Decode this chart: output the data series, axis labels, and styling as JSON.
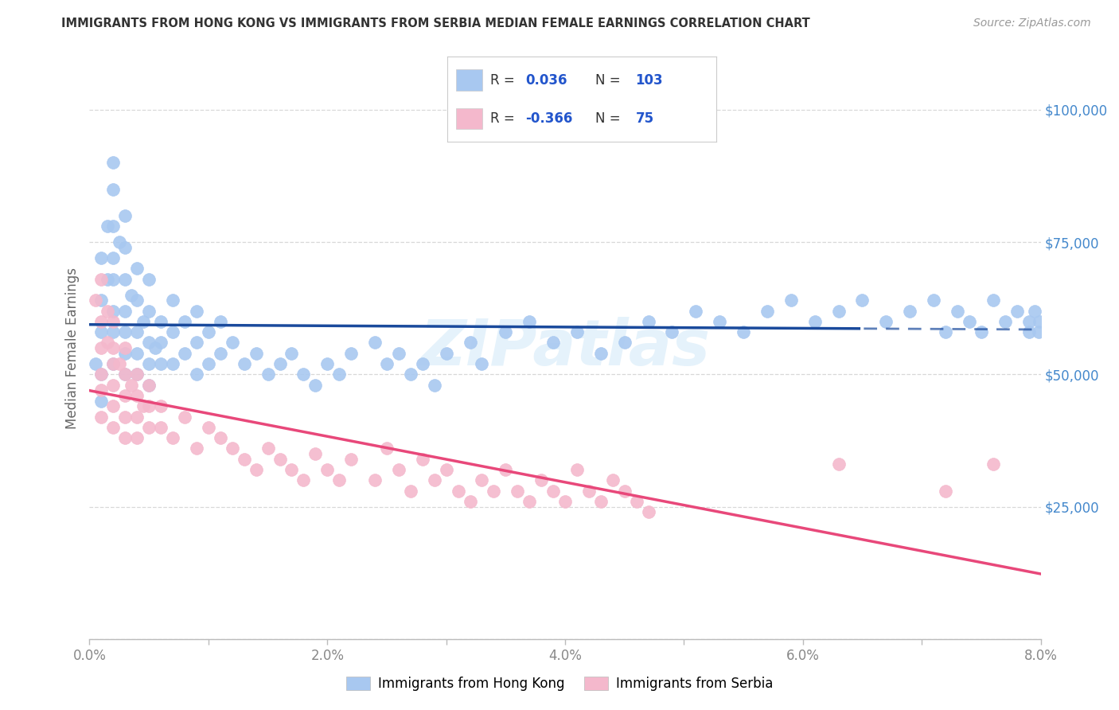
{
  "title": "IMMIGRANTS FROM HONG KONG VS IMMIGRANTS FROM SERBIA MEDIAN FEMALE EARNINGS CORRELATION CHART",
  "source": "Source: ZipAtlas.com",
  "ylabel": "Median Female Earnings",
  "xlim": [
    0.0,
    0.08
  ],
  "ylim": [
    0,
    110000
  ],
  "yticks": [
    0,
    25000,
    50000,
    75000,
    100000
  ],
  "xticks": [
    0.0,
    0.01,
    0.02,
    0.03,
    0.04,
    0.05,
    0.06,
    0.07,
    0.08
  ],
  "xtick_labels": [
    "0.0%",
    "",
    "2.0%",
    "",
    "4.0%",
    "",
    "6.0%",
    "",
    "8.0%"
  ],
  "hk_R": 0.036,
  "hk_N": 103,
  "serbia_R": -0.366,
  "serbia_N": 75,
  "hk_color": "#a8c8f0",
  "serbia_color": "#f4b8cc",
  "hk_line_color": "#1a4a9c",
  "serbia_line_color": "#e8487a",
  "legend_text_color": "#2255cc",
  "title_color": "#333333",
  "watermark": "ZIPatlas",
  "bg_color": "#ffffff",
  "grid_color": "#d8d8d8",
  "right_label_color": "#4488cc",
  "hk_x": [
    0.0005,
    0.001,
    0.001,
    0.001,
    0.001,
    0.001,
    0.0015,
    0.0015,
    0.002,
    0.002,
    0.002,
    0.002,
    0.002,
    0.002,
    0.002,
    0.002,
    0.0025,
    0.003,
    0.003,
    0.003,
    0.003,
    0.003,
    0.003,
    0.003,
    0.0035,
    0.004,
    0.004,
    0.004,
    0.004,
    0.004,
    0.0045,
    0.005,
    0.005,
    0.005,
    0.005,
    0.005,
    0.0055,
    0.006,
    0.006,
    0.006,
    0.007,
    0.007,
    0.007,
    0.008,
    0.008,
    0.009,
    0.009,
    0.009,
    0.01,
    0.01,
    0.011,
    0.011,
    0.012,
    0.013,
    0.014,
    0.015,
    0.016,
    0.017,
    0.018,
    0.019,
    0.02,
    0.021,
    0.022,
    0.024,
    0.025,
    0.026,
    0.027,
    0.028,
    0.029,
    0.03,
    0.032,
    0.033,
    0.035,
    0.037,
    0.039,
    0.041,
    0.043,
    0.045,
    0.047,
    0.049,
    0.051,
    0.053,
    0.055,
    0.057,
    0.059,
    0.061,
    0.063,
    0.065,
    0.067,
    0.069,
    0.071,
    0.072,
    0.073,
    0.074,
    0.075,
    0.076,
    0.077,
    0.078,
    0.079,
    0.079,
    0.0795,
    0.0798,
    0.0799
  ],
  "hk_y": [
    52000,
    58000,
    72000,
    64000,
    50000,
    45000,
    78000,
    68000,
    85000,
    90000,
    78000,
    72000,
    68000,
    62000,
    58000,
    52000,
    75000,
    80000,
    74000,
    68000,
    62000,
    58000,
    54000,
    50000,
    65000,
    70000,
    64000,
    58000,
    54000,
    50000,
    60000,
    68000,
    62000,
    56000,
    52000,
    48000,
    55000,
    60000,
    56000,
    52000,
    64000,
    58000,
    52000,
    60000,
    54000,
    62000,
    56000,
    50000,
    58000,
    52000,
    60000,
    54000,
    56000,
    52000,
    54000,
    50000,
    52000,
    54000,
    50000,
    48000,
    52000,
    50000,
    54000,
    56000,
    52000,
    54000,
    50000,
    52000,
    48000,
    54000,
    56000,
    52000,
    58000,
    60000,
    56000,
    58000,
    54000,
    56000,
    60000,
    58000,
    62000,
    60000,
    58000,
    62000,
    64000,
    60000,
    62000,
    64000,
    60000,
    62000,
    64000,
    58000,
    62000,
    60000,
    58000,
    64000,
    60000,
    62000,
    58000,
    60000,
    62000,
    58000,
    60000
  ],
  "sr_x": [
    0.0005,
    0.001,
    0.001,
    0.001,
    0.001,
    0.001,
    0.001,
    0.0015,
    0.0015,
    0.002,
    0.002,
    0.002,
    0.002,
    0.002,
    0.002,
    0.0025,
    0.003,
    0.003,
    0.003,
    0.003,
    0.003,
    0.0035,
    0.004,
    0.004,
    0.004,
    0.004,
    0.0045,
    0.005,
    0.005,
    0.005,
    0.006,
    0.006,
    0.007,
    0.008,
    0.009,
    0.01,
    0.011,
    0.012,
    0.013,
    0.014,
    0.015,
    0.016,
    0.017,
    0.018,
    0.019,
    0.02,
    0.021,
    0.022,
    0.024,
    0.025,
    0.026,
    0.027,
    0.028,
    0.029,
    0.03,
    0.031,
    0.032,
    0.033,
    0.034,
    0.035,
    0.036,
    0.037,
    0.038,
    0.039,
    0.04,
    0.041,
    0.042,
    0.043,
    0.044,
    0.045,
    0.046,
    0.047,
    0.063,
    0.072,
    0.076
  ],
  "sr_y": [
    64000,
    68000,
    60000,
    55000,
    50000,
    47000,
    42000,
    62000,
    56000,
    60000,
    55000,
    52000,
    48000,
    44000,
    40000,
    52000,
    55000,
    50000,
    46000,
    42000,
    38000,
    48000,
    50000,
    46000,
    42000,
    38000,
    44000,
    48000,
    44000,
    40000,
    44000,
    40000,
    38000,
    42000,
    36000,
    40000,
    38000,
    36000,
    34000,
    32000,
    36000,
    34000,
    32000,
    30000,
    35000,
    32000,
    30000,
    34000,
    30000,
    36000,
    32000,
    28000,
    34000,
    30000,
    32000,
    28000,
    26000,
    30000,
    28000,
    32000,
    28000,
    26000,
    30000,
    28000,
    26000,
    32000,
    28000,
    26000,
    30000,
    28000,
    26000,
    24000,
    33000,
    28000,
    33000
  ]
}
